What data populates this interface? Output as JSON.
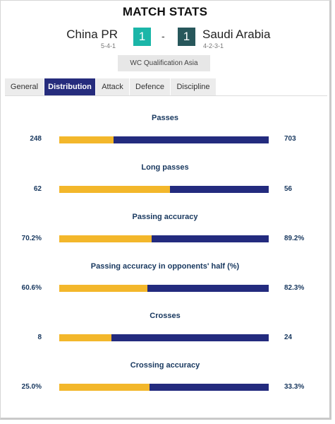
{
  "header": {
    "title": "MATCH STATS",
    "home_team": "China PR",
    "home_formation": "5-4-1",
    "home_score": "1",
    "away_team": "Saudi Arabia",
    "away_formation": "4-2-3-1",
    "away_score": "1",
    "separator": "-",
    "competition": "WC Qualification Asia"
  },
  "tabs": [
    {
      "label": "General",
      "active": false
    },
    {
      "label": "Distribution",
      "active": true
    },
    {
      "label": "Attack",
      "active": false
    },
    {
      "label": "Defence",
      "active": false
    },
    {
      "label": "Discipline",
      "active": false
    }
  ],
  "colors": {
    "home": "#f3b72b",
    "away": "#232b7e",
    "home_score_bg": "#1bb6a8",
    "away_score_bg": "#27575b",
    "active_tab_bg": "#262c7d",
    "active_tab_text": "#ffffff"
  },
  "stats": [
    {
      "label": "Passes",
      "home": "248",
      "away": "703",
      "home_share": 0.26
    },
    {
      "label": "Long passes",
      "home": "62",
      "away": "56",
      "home_share": 0.53
    },
    {
      "label": "Passing accuracy",
      "home": "70.2%",
      "away": "89.2%",
      "home_share": 0.44
    },
    {
      "label": "Passing accuracy in opponents' half (%)",
      "home": "60.6%",
      "away": "82.3%",
      "home_share": 0.42
    },
    {
      "label": "Crosses",
      "home": "8",
      "away": "24",
      "home_share": 0.25
    },
    {
      "label": "Crossing accuracy",
      "home": "25.0%",
      "away": "33.3%",
      "home_share": 0.43
    }
  ]
}
